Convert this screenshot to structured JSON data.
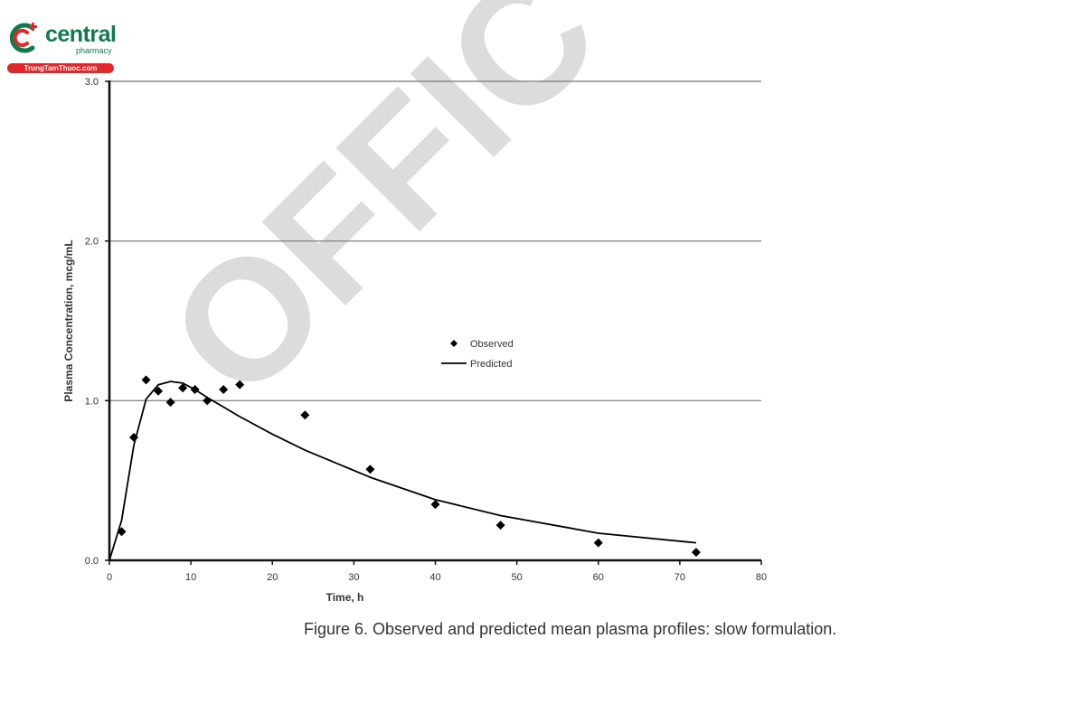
{
  "logo": {
    "name": "central",
    "sub": "pharmacy",
    "url": "TrungTamThuoc.com",
    "colors": {
      "green": "#0f7a4c",
      "red": "#e3262a"
    },
    "icon": "central-pharmacy-logo-icon"
  },
  "watermark": {
    "text": "OFFIC",
    "color": "#dcdcdc"
  },
  "caption": "Figure 6. Observed and predicted mean plasma profiles: slow formulation.",
  "chart_data": {
    "type": "scatter",
    "title": "",
    "xlabel": "Time, h",
    "ylabel": "Plasma Concentration,  mcg/mL",
    "xlim": [
      0,
      80
    ],
    "ylim": [
      0,
      3
    ],
    "xticks": [
      0,
      10,
      20,
      30,
      40,
      50,
      60,
      70,
      80
    ],
    "yticks": [
      0,
      1,
      2,
      3
    ],
    "xtick_labels": [
      "0",
      "10",
      "20",
      "30",
      "40",
      "50",
      "60",
      "70",
      "80"
    ],
    "ytick_labels": [
      "0.0",
      "1.0",
      "2.0",
      "3.0"
    ],
    "grid": "horizontal",
    "legend_position": "center-right",
    "series": [
      {
        "name": "Observed",
        "kind": "markers",
        "marker": "diamond",
        "color": "#000000",
        "x": [
          1.5,
          3,
          4.5,
          6,
          7.5,
          9,
          10.5,
          12,
          14,
          16,
          24,
          32,
          40,
          48,
          60,
          72
        ],
        "y": [
          0.18,
          0.77,
          1.13,
          1.06,
          0.99,
          1.08,
          1.07,
          1.0,
          1.07,
          1.1,
          0.91,
          0.57,
          0.35,
          0.22,
          0.11,
          0.05
        ]
      },
      {
        "name": "Predicted",
        "kind": "line",
        "color": "#000000",
        "x": [
          0,
          1.5,
          3,
          4.5,
          6,
          7.5,
          9,
          10.5,
          12,
          14,
          16,
          20,
          24,
          32,
          40,
          48,
          60,
          72
        ],
        "y": [
          0.0,
          0.25,
          0.72,
          1.01,
          1.1,
          1.12,
          1.11,
          1.07,
          1.02,
          0.96,
          0.9,
          0.79,
          0.69,
          0.52,
          0.38,
          0.28,
          0.17,
          0.11
        ]
      }
    ]
  }
}
